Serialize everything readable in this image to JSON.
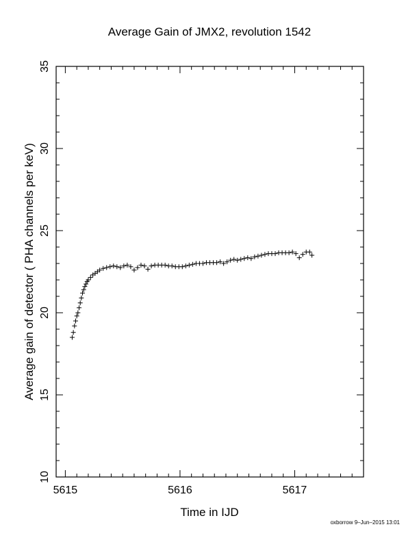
{
  "chart_data": {
    "type": "scatter",
    "title": "Average Gain of JMX2, revolution 1542",
    "xlabel": "Time in IJD",
    "ylabel": "Average gain of detector ( PHA channels per keV)",
    "xlim": [
      5614.92,
      5617.6
    ],
    "ylim": [
      10,
      35
    ],
    "xticks_major": [
      5615,
      5616,
      5617
    ],
    "xtick_labels": [
      "5615",
      "5616",
      "5617"
    ],
    "xtick_minor_step": 0.1,
    "yticks_major": [
      10,
      15,
      20,
      25,
      30,
      35
    ],
    "ytick_labels": [
      "10",
      "15",
      "20",
      "25",
      "30",
      "35"
    ],
    "ytick_minor_step": 1,
    "marker": "plus",
    "grid": false,
    "series": [
      {
        "x": [
          5615.06,
          5615.07,
          5615.08,
          5615.09,
          5615.1,
          5615.11,
          5615.12,
          5615.13,
          5615.14,
          5615.15,
          5615.16,
          5615.17,
          5615.18,
          5615.19,
          5615.2,
          5615.22,
          5615.24,
          5615.26,
          5615.28,
          5615.3,
          5615.33,
          5615.36,
          5615.39,
          5615.42,
          5615.45,
          5615.48,
          5615.51,
          5615.54,
          5615.57,
          5615.6,
          5615.63,
          5615.66,
          5615.69,
          5615.72,
          5615.75,
          5615.78,
          5615.81,
          5615.84,
          5615.87,
          5615.9,
          5615.93,
          5615.96,
          5615.99,
          5616.02,
          5616.05,
          5616.08,
          5616.11,
          5616.14,
          5616.17,
          5616.2,
          5616.23,
          5616.26,
          5616.29,
          5616.32,
          5616.35,
          5616.38,
          5616.41,
          5616.44,
          5616.47,
          5616.5,
          5616.53,
          5616.56,
          5616.59,
          5616.62,
          5616.65,
          5616.68,
          5616.71,
          5616.74,
          5616.77,
          5616.8,
          5616.83,
          5616.86,
          5616.89,
          5616.92,
          5616.95,
          5616.98,
          5617.01,
          5617.04,
          5617.07,
          5617.1,
          5617.13,
          5617.15
        ],
        "y": [
          18.5,
          18.8,
          19.2,
          19.5,
          19.8,
          20.0,
          20.3,
          20.6,
          20.9,
          21.2,
          21.4,
          21.6,
          21.75,
          21.9,
          22.0,
          22.15,
          22.3,
          22.4,
          22.5,
          22.6,
          22.7,
          22.75,
          22.8,
          22.85,
          22.8,
          22.75,
          22.85,
          22.9,
          22.8,
          22.6,
          22.75,
          22.9,
          22.85,
          22.65,
          22.85,
          22.9,
          22.9,
          22.9,
          22.9,
          22.85,
          22.85,
          22.8,
          22.8,
          22.8,
          22.85,
          22.9,
          22.95,
          23.0,
          23.0,
          23.0,
          23.05,
          23.05,
          23.05,
          23.05,
          23.1,
          23.0,
          23.1,
          23.2,
          23.25,
          23.2,
          23.25,
          23.3,
          23.35,
          23.3,
          23.4,
          23.45,
          23.5,
          23.55,
          23.6,
          23.6,
          23.6,
          23.65,
          23.65,
          23.65,
          23.65,
          23.7,
          23.6,
          23.35,
          23.55,
          23.7,
          23.7,
          23.5
        ]
      }
    ]
  },
  "footer": {
    "credit": "oxborrow  9–Jun–2015 13:01"
  }
}
